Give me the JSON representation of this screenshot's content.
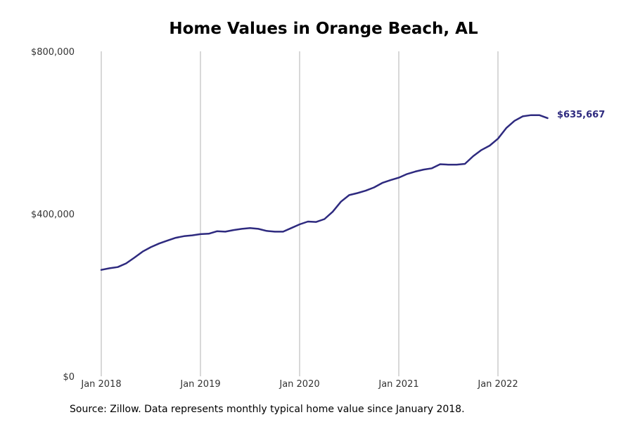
{
  "chart_data": {
    "type": "line",
    "title": "Home Values in Orange Beach, AL",
    "xlabel": "",
    "ylabel": "",
    "ylim": [
      0,
      800000
    ],
    "y_ticks": [
      {
        "value": 0,
        "label": "$0"
      },
      {
        "value": 400000,
        "label": "$400,000"
      },
      {
        "value": 800000,
        "label": "$800,000"
      }
    ],
    "x_ticks": [
      {
        "date": "2018-01",
        "label": "Jan 2018"
      },
      {
        "date": "2019-01",
        "label": "Jan 2019"
      },
      {
        "date": "2020-01",
        "label": "Jan 2020"
      },
      {
        "date": "2021-01",
        "label": "Jan 2021"
      },
      {
        "date": "2022-01",
        "label": "Jan 2022"
      }
    ],
    "grid": "vertical",
    "line_color": "#2e2a7f",
    "grid_color": "#b0b0b0",
    "end_label": "$635,667",
    "series": [
      {
        "x": [
          "2018-01",
          "2018-02",
          "2018-03",
          "2018-04",
          "2018-05",
          "2018-06",
          "2018-07",
          "2018-08",
          "2018-09",
          "2018-10",
          "2018-11",
          "2018-12",
          "2019-01",
          "2019-02",
          "2019-03",
          "2019-04",
          "2019-05",
          "2019-06",
          "2019-07",
          "2019-08",
          "2019-09",
          "2019-10",
          "2019-11",
          "2019-12",
          "2020-01",
          "2020-02",
          "2020-03",
          "2020-04",
          "2020-05",
          "2020-06",
          "2020-07",
          "2020-08",
          "2020-09",
          "2020-10",
          "2020-11",
          "2020-12",
          "2021-01",
          "2021-02",
          "2021-03",
          "2021-04",
          "2021-05",
          "2021-06",
          "2021-07",
          "2021-08",
          "2021-09",
          "2021-10",
          "2021-11",
          "2021-12",
          "2022-01",
          "2022-02",
          "2022-03",
          "2022-04",
          "2022-05",
          "2022-06",
          "2022-07"
        ],
        "values": [
          262000,
          266000,
          269000,
          278000,
          292000,
          307000,
          318000,
          327000,
          334000,
          341000,
          345000,
          347000,
          350000,
          351000,
          357000,
          356000,
          360000,
          363000,
          365000,
          363000,
          358000,
          356000,
          356000,
          365000,
          374000,
          381000,
          380000,
          387000,
          405000,
          430000,
          446000,
          451000,
          457000,
          465000,
          476000,
          483000,
          489000,
          498000,
          504000,
          509000,
          512000,
          522000,
          521000,
          521000,
          523000,
          542000,
          557000,
          568000,
          585000,
          611000,
          629000,
          640000,
          643000,
          643000,
          635667
        ]
      }
    ]
  },
  "source": "Source: Zillow. Data represents monthly typical home value since January 2018."
}
